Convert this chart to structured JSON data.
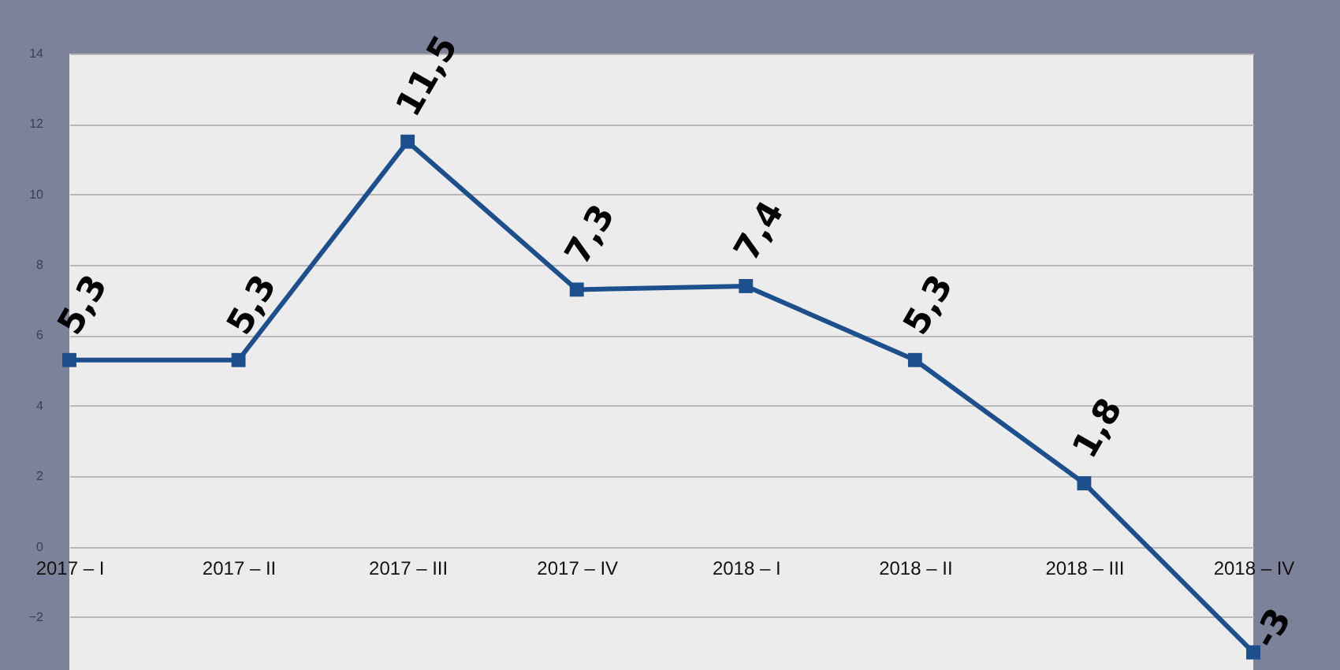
{
  "chart_data": {
    "type": "line",
    "categories": [
      "2017 – I",
      "2017 – II",
      "2017 – III",
      "2017 – IV",
      "2018 – I",
      "2018 – II",
      "2018 – III",
      "2018 – IV"
    ],
    "series": [
      {
        "color": "#1c4f8c",
        "values": [
          5.3,
          5.3,
          11.5,
          7.3,
          7.4,
          5.3,
          1.8,
          -3
        ],
        "value_labels": [
          "5,3",
          "5,3",
          "11,5",
          "7,3",
          "7,4",
          "5,3",
          "1,8",
          "-3"
        ]
      }
    ],
    "ylim": [
      -3.5,
      14
    ],
    "yticks": [
      -2,
      0,
      2,
      4,
      6,
      8,
      10,
      12,
      14
    ],
    "grid": "y",
    "marker": "square",
    "line_style": "solid"
  }
}
